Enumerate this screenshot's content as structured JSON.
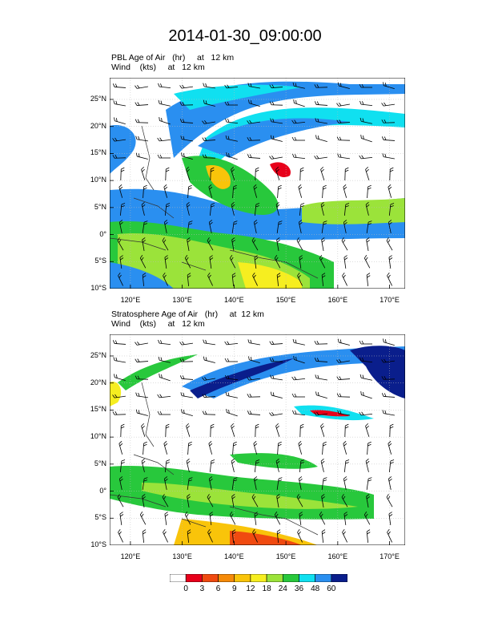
{
  "title": "2014-01-30_09:00:00",
  "panels": [
    {
      "id": "pbl",
      "line1": "PBL Age of Air   (hr)     at   12 km",
      "line2": "Wind    (kts)     at   12 km"
    },
    {
      "id": "strat",
      "line1": "Stratosphere Age of Air   (hr)     at  12 km",
      "line2": "Wind    (kts)     at   12 km"
    }
  ],
  "lat_labels": [
    "25°N",
    "20°N",
    "15°N",
    "10°N",
    "5°N",
    "0°",
    "5°S",
    "10°S"
  ],
  "lon_labels": [
    "120°E",
    "130°E",
    "140°E",
    "150°E",
    "160°E",
    "170°E"
  ],
  "colorbar": {
    "labels": [
      "0",
      "3",
      "6",
      "9",
      "12",
      "18",
      "24",
      "36",
      "48",
      "60"
    ],
    "colors": [
      "#ffffff",
      "#e8001a",
      "#f04a10",
      "#f58a08",
      "#f9c40a",
      "#f6ee20",
      "#9be33a",
      "#28c83c",
      "#10e0f0",
      "#2a8ff0",
      "#0a1e8c"
    ]
  },
  "chart_data": {
    "type": "heatmap",
    "title": "2014-01-30_09:00:00",
    "lat_range": [
      -10,
      29
    ],
    "lon_range": [
      116,
      173
    ],
    "colorbar_levels": [
      0,
      3,
      6,
      9,
      12,
      18,
      24,
      36,
      48,
      60
    ]
  }
}
